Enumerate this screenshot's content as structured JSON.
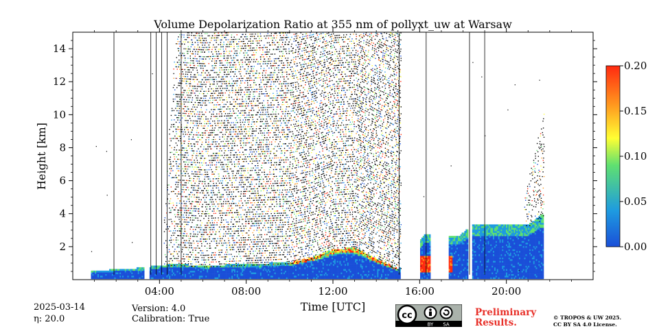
{
  "chart_data": {
    "type": "heatmap",
    "title": "Volume Depolarization Ratio at 355 nm of pollyxt_uw at Warsaw",
    "xlabel": "Time [UTC]",
    "ylabel": "Height [km]",
    "x_range_hours": [
      0,
      24
    ],
    "ylim": [
      0,
      15
    ],
    "x_ticks": [
      "04:00",
      "08:00",
      "12:00",
      "16:00",
      "20:00"
    ],
    "x_tick_hours": [
      4,
      8,
      12,
      16,
      20
    ],
    "y_ticks": [
      "2",
      "4",
      "6",
      "8",
      "10",
      "12",
      "14"
    ],
    "y_tick_values": [
      2,
      4,
      6,
      8,
      10,
      12,
      14
    ],
    "colorbar": {
      "range": [
        0,
        0.2
      ],
      "ticks": [
        "0.00",
        "0.05",
        "0.10",
        "0.15",
        "0.20"
      ],
      "tick_values": [
        0,
        0.05,
        0.1,
        0.15,
        0.2
      ],
      "colors": [
        "#1a4fd8",
        "#1e9be0",
        "#5fe070",
        "#ffff33",
        "#ff9a1f",
        "#ff2a10"
      ]
    },
    "boundary_layer_top_km": [
      [
        0.7,
        0.5
      ],
      [
        2.6,
        0.6
      ],
      [
        4.6,
        0.9
      ],
      [
        6,
        0.8
      ],
      [
        8,
        0.9
      ],
      [
        10,
        1.0
      ],
      [
        11,
        1.3
      ],
      [
        12,
        1.8
      ],
      [
        13,
        1.9
      ],
      [
        14,
        1.2
      ],
      [
        15,
        0.6
      ],
      [
        16.2,
        2.7
      ],
      [
        17.8,
        2.6
      ],
      [
        18.4,
        3.3
      ],
      [
        21.0,
        3.3
      ],
      [
        21.6,
        3.9
      ]
    ],
    "data_gaps_hours": [
      [
        0,
        0.8
      ],
      [
        3.3,
        3.5
      ],
      [
        15.1,
        16.0
      ],
      [
        16.5,
        17.3
      ],
      [
        18.2,
        18.4
      ],
      [
        21.7,
        24
      ]
    ],
    "vertical_lines_hours": [
      1.9,
      3.6,
      3.85,
      4.1,
      4.35,
      5.0,
      15.05,
      16.3,
      18.3,
      19.0
    ]
  },
  "footer": {
    "date": "2025-03-14",
    "eta": "η: 20.0",
    "version": "Version: 4.0",
    "calibration": "Calibration: True",
    "preliminary_line1": "Preliminary",
    "preliminary_line2": "Results.",
    "copyright_line1": "© TROPOS & UW 2025.",
    "copyright_line2": "CC BY SA 4.0 License.",
    "cc_label": "cc",
    "by_label": "BY",
    "sa_label": "SA"
  }
}
